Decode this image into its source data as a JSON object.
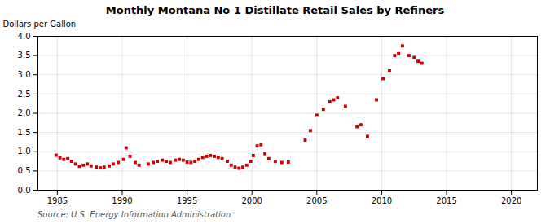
{
  "chart_data": {
    "type": "scatter",
    "title": "Monthly Montana No 1 Distillate Retail Sales by Refiners",
    "ylabel": "Dollars per Gallon",
    "annotations": [
      "Source: U.S. Energy Information Administration"
    ],
    "color": "#cc0000",
    "marker": "square",
    "grid": true,
    "xlim": [
      1983.5,
      2022
    ],
    "ylim": [
      0.0,
      4.0
    ],
    "xticks": [
      1985,
      1990,
      1995,
      2000,
      2005,
      2010,
      2015,
      2020
    ],
    "yticks": [
      {
        "value": 0.0,
        "label": "0.0"
      },
      0.5,
      {
        "value": 1.0,
        "label": "1.0"
      },
      1.5,
      {
        "value": 2.0,
        "label": "2.0"
      },
      2.5,
      {
        "value": 3.0,
        "label": "3.0"
      },
      3.5,
      {
        "value": 4.0,
        "label": "4.0"
      }
    ],
    "x": [
      1984.9,
      1985.2,
      1985.5,
      1985.8,
      1986.1,
      1986.4,
      1986.7,
      1987.0,
      1987.3,
      1987.6,
      1988.0,
      1988.3,
      1988.6,
      1989.0,
      1989.3,
      1989.7,
      1990.1,
      1990.3,
      1990.6,
      1991.0,
      1991.3,
      1992.0,
      1992.4,
      1992.7,
      1993.1,
      1993.4,
      1993.7,
      1994.1,
      1994.4,
      1994.7,
      1995.0,
      1995.3,
      1995.6,
      1995.9,
      1996.2,
      1996.5,
      1996.8,
      1997.1,
      1997.4,
      1997.7,
      1998.1,
      1998.4,
      1998.7,
      1999.0,
      1999.3,
      1999.6,
      1999.9,
      2000.1,
      2000.4,
      2000.7,
      2001.0,
      2001.3,
      2001.8,
      2002.3,
      2002.8,
      2004.1,
      2004.5,
      2005.0,
      2005.5,
      2006.0,
      2006.3,
      2006.6,
      2007.2,
      2008.1,
      2008.4,
      2008.9,
      2009.6,
      2010.1,
      2010.6,
      2011.0,
      2011.3,
      2011.6,
      2012.1,
      2012.5,
      2012.8,
      2013.1
    ],
    "values": [
      0.91,
      0.84,
      0.8,
      0.82,
      0.75,
      0.68,
      0.62,
      0.65,
      0.68,
      0.63,
      0.6,
      0.58,
      0.6,
      0.63,
      0.68,
      0.72,
      0.8,
      1.1,
      0.88,
      0.72,
      0.65,
      0.68,
      0.72,
      0.75,
      0.78,
      0.75,
      0.72,
      0.78,
      0.8,
      0.78,
      0.73,
      0.72,
      0.75,
      0.8,
      0.85,
      0.88,
      0.9,
      0.88,
      0.85,
      0.82,
      0.75,
      0.65,
      0.6,
      0.57,
      0.6,
      0.65,
      0.75,
      0.9,
      1.15,
      1.18,
      0.95,
      0.82,
      0.75,
      0.72,
      0.73,
      1.3,
      1.55,
      1.95,
      2.1,
      2.3,
      2.35,
      2.4,
      2.18,
      1.65,
      1.7,
      1.4,
      2.35,
      2.9,
      3.1,
      3.5,
      3.55,
      3.75,
      3.5,
      3.45,
      3.35,
      3.3
    ]
  }
}
